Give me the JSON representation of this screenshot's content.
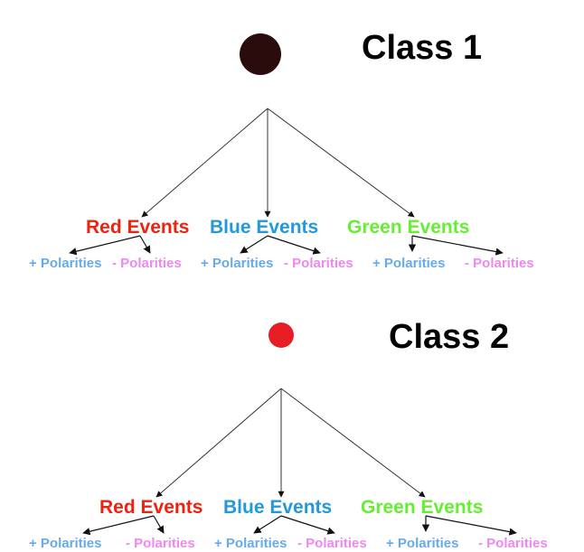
{
  "colors": {
    "red": "#ee2211",
    "blue": "#2299dd",
    "green": "#66ee33",
    "pos_polarity": "#66aaee",
    "neg_polarity": "#ee88ee",
    "class1_dot": "#2a0c0c",
    "class2_dot": "#e81c24"
  },
  "classes": [
    {
      "title": "Class 1",
      "events": [
        {
          "prefix": "Red",
          "suffix": " Events",
          "prefix_color": "red",
          "suffix_color": "red",
          "pos": "+ Polarities",
          "neg": "- Polarities"
        },
        {
          "prefix": "Blue",
          "suffix": " Events",
          "prefix_color": "blue",
          "suffix_color": "blue",
          "pos": "+ Polarities",
          "neg": "- Polarities"
        },
        {
          "prefix": "Green",
          "suffix": " Events",
          "prefix_color": "green",
          "suffix_color": "green",
          "pos": "+ Polarities",
          "neg": "- Polarities"
        }
      ]
    },
    {
      "title": "Class 2",
      "events": [
        {
          "prefix": "Red",
          "suffix": " Events",
          "prefix_color": "red",
          "suffix_color": "red",
          "pos": "+ Polarities",
          "neg": "- Polarities"
        },
        {
          "prefix": "Blue",
          "suffix": " Events",
          "prefix_color": "blue",
          "suffix_color": "blue",
          "pos": "+ Polarities",
          "neg": "- Polarities"
        },
        {
          "prefix": "Green",
          "suffix": " Events",
          "prefix_color": "green",
          "suffix_color": "green",
          "pos": "+ Polarities",
          "neg": "- Polarities"
        }
      ]
    }
  ]
}
